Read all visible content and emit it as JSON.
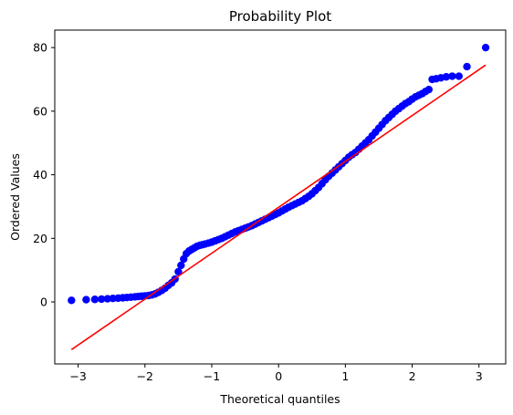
{
  "chart_data": {
    "type": "scatter",
    "title": "Probability Plot",
    "xlabel": "Theoretical quantiles",
    "ylabel": "Ordered Values",
    "xlim": [
      -3.35,
      3.4
    ],
    "ylim": [
      -19.5,
      85.5
    ],
    "xticks": [
      -3,
      -2,
      -1,
      0,
      1,
      2,
      3
    ],
    "yticks": [
      0,
      20,
      40,
      60,
      80
    ],
    "grid": false,
    "marker_color": "#0000ff",
    "fit_color": "#ff0000",
    "series": [
      {
        "x": [
          -3.1,
          -2.88,
          -2.75,
          -2.65,
          -2.56,
          -2.48,
          -2.4,
          -2.33,
          -2.27,
          -2.21,
          -2.15,
          -2.1,
          -2.05,
          -2.0,
          -1.95,
          -1.9,
          -1.85,
          -1.8,
          -1.75,
          -1.7,
          -1.65,
          -1.6,
          -1.55,
          -1.5,
          -1.46,
          -1.42,
          -1.38,
          -1.34,
          -1.3,
          -1.26,
          -1.22,
          -1.18,
          -1.14,
          -1.1,
          -1.05,
          -1.0,
          -0.95,
          -0.9,
          -0.85,
          -0.8,
          -0.75,
          -0.7,
          -0.65,
          -0.6,
          -0.55,
          -0.5,
          -0.45,
          -0.4,
          -0.35,
          -0.3,
          -0.25,
          -0.2,
          -0.15,
          -0.1,
          -0.05,
          0.0,
          0.05,
          0.1,
          0.15,
          0.2,
          0.25,
          0.3,
          0.35,
          0.4,
          0.45,
          0.5,
          0.55,
          0.6,
          0.65,
          0.7,
          0.75,
          0.8,
          0.85,
          0.9,
          0.95,
          1.0,
          1.05,
          1.1,
          1.15,
          1.2,
          1.25,
          1.3,
          1.35,
          1.4,
          1.45,
          1.5,
          1.55,
          1.6,
          1.65,
          1.7,
          1.75,
          1.8,
          1.85,
          1.9,
          1.95,
          2.0,
          2.05,
          2.1,
          2.15,
          2.2,
          2.25,
          2.3,
          2.36,
          2.43,
          2.51,
          2.6,
          2.7,
          2.82,
          3.1
        ],
        "y": [
          0.5,
          0.7,
          0.8,
          0.9,
          1.0,
          1.1,
          1.2,
          1.3,
          1.4,
          1.5,
          1.6,
          1.7,
          1.8,
          1.9,
          2.0,
          2.2,
          2.5,
          3.0,
          3.6,
          4.3,
          5.2,
          6.0,
          7.2,
          9.5,
          11.5,
          13.5,
          15.2,
          16.0,
          16.5,
          17.0,
          17.5,
          17.8,
          18.0,
          18.2,
          18.5,
          18.8,
          19.2,
          19.6,
          20.0,
          20.5,
          21.0,
          21.5,
          22.0,
          22.4,
          22.8,
          23.2,
          23.6,
          24.0,
          24.5,
          25.0,
          25.5,
          26.0,
          26.5,
          27.0,
          27.5,
          28.0,
          28.6,
          29.2,
          29.8,
          30.3,
          30.8,
          31.3,
          31.8,
          32.5,
          33.2,
          34.0,
          35.0,
          36.0,
          37.2,
          38.4,
          39.5,
          40.5,
          41.5,
          42.5,
          43.5,
          44.5,
          45.5,
          46.3,
          47.0,
          48.0,
          49.0,
          50.0,
          51.0,
          52.2,
          53.4,
          54.6,
          55.8,
          57.0,
          58.0,
          59.0,
          60.0,
          60.8,
          61.6,
          62.4,
          63.0,
          63.8,
          64.5,
          65.0,
          65.5,
          66.2,
          66.8,
          70.0,
          70.2,
          70.5,
          70.8,
          71.0,
          71.0,
          74.0,
          80.0
        ]
      }
    ],
    "fit_line": {
      "x": [
        -3.1,
        3.1
      ],
      "y": [
        -15.0,
        74.5
      ]
    }
  }
}
